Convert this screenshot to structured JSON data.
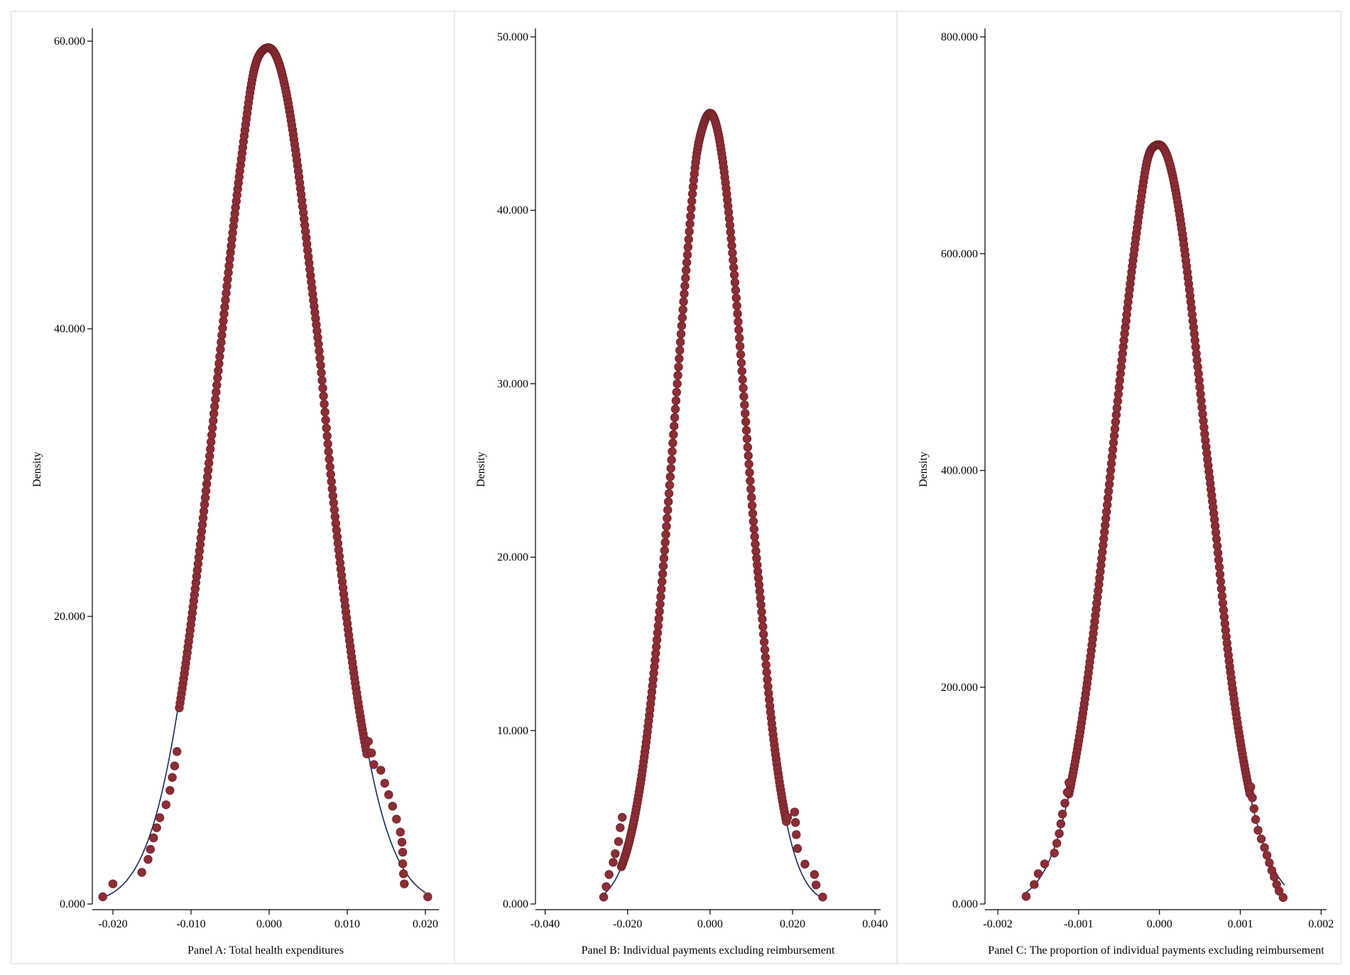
{
  "chart_data": [
    {
      "type": "scatter",
      "panel_id": "a",
      "xlabel": "Panel A: Total health expenditures",
      "ylabel": "Density",
      "xlim": [
        -0.022,
        0.021
      ],
      "ylim": [
        0,
        60
      ],
      "x_ticks": [
        -0.02,
        -0.01,
        0,
        0.01,
        0.02
      ],
      "x_tick_labels": [
        "-0.020",
        "-0.010",
        "0.000",
        "0.010",
        "0.020"
      ],
      "y_ticks": [
        0,
        20,
        40,
        60
      ],
      "y_tick_labels": [
        "0.000",
        "20.000",
        "40.000",
        "60.000"
      ],
      "kernel_density": {
        "peak": 59.5,
        "bandwidth": 0.0067,
        "x_range": [
          -0.0115,
          0.0125
        ],
        "bumps": [
          [
            -0.002,
            0.9,
            0.0008
          ],
          [
            0.0065,
            0.8,
            0.0007
          ]
        ]
      },
      "tail_points": [
        [
          -0.0213,
          0.5
        ],
        [
          -0.02,
          1.4
        ],
        [
          -0.0163,
          2.2
        ],
        [
          -0.0155,
          3.1
        ],
        [
          -0.0152,
          3.8
        ],
        [
          -0.0148,
          4.6
        ],
        [
          -0.0144,
          5.3
        ],
        [
          -0.014,
          6.0
        ],
        [
          -0.0132,
          6.9
        ],
        [
          -0.0127,
          7.9
        ],
        [
          -0.0124,
          8.8
        ],
        [
          -0.0121,
          9.6
        ],
        [
          -0.0118,
          10.6
        ],
        [
          0.0127,
          11.3
        ],
        [
          0.0131,
          10.5
        ],
        [
          0.0134,
          9.7
        ],
        [
          0.0143,
          9.3
        ],
        [
          0.0148,
          8.4
        ],
        [
          0.0153,
          7.6
        ],
        [
          0.0158,
          6.8
        ],
        [
          0.0163,
          5.9
        ],
        [
          0.0168,
          5.0
        ],
        [
          0.017,
          4.3
        ],
        [
          0.0171,
          3.6
        ],
        [
          0.0171,
          2.8
        ],
        [
          0.0172,
          2.1
        ],
        [
          0.0173,
          1.4
        ],
        [
          0.0203,
          0.5
        ]
      ],
      "normal_curve": {
        "mean": 0.0,
        "sd": 0.0068,
        "x_range": [
          -0.021,
          0.02
        ]
      }
    },
    {
      "type": "scatter",
      "panel_id": "b",
      "xlabel": "Panel B: Individual payments excluding reimbursement",
      "ylabel": "Density",
      "xlim": [
        -0.042,
        0.041
      ],
      "ylim": [
        0,
        50
      ],
      "x_ticks": [
        -0.04,
        -0.02,
        0,
        0.02,
        0.04
      ],
      "x_tick_labels": [
        "-0.040",
        "-0.020",
        "0.000",
        "0.020",
        "0.040"
      ],
      "y_ticks": [
        0,
        10,
        20,
        30,
        40,
        50
      ],
      "y_tick_labels": [
        "0.000",
        "10.000",
        "20.000",
        "30.000",
        "40.000",
        "50.000"
      ],
      "kernel_density": {
        "peak": 45.6,
        "bandwidth": 0.0087,
        "x_range": [
          -0.0215,
          0.0185
        ],
        "bumps": [
          [
            -0.0035,
            0.7,
            0.001
          ],
          [
            0.0125,
            0.6,
            0.0009
          ]
        ]
      },
      "tail_points": [
        [
          -0.0258,
          0.4
        ],
        [
          -0.0252,
          1.0
        ],
        [
          -0.0245,
          1.7
        ],
        [
          -0.0235,
          2.4
        ],
        [
          -0.023,
          2.9
        ],
        [
          -0.0222,
          3.6
        ],
        [
          -0.0218,
          4.4
        ],
        [
          -0.0213,
          5.0
        ],
        [
          0.0188,
          5.0
        ],
        [
          0.0205,
          5.3
        ],
        [
          0.0207,
          4.7
        ],
        [
          0.0209,
          4.0
        ],
        [
          0.0212,
          3.2
        ],
        [
          0.023,
          2.3
        ],
        [
          0.0253,
          1.7
        ],
        [
          0.0257,
          1.1
        ],
        [
          0.0273,
          0.4
        ]
      ],
      "normal_curve": {
        "mean": 0.0,
        "sd": 0.0087,
        "x_range": [
          -0.026,
          0.027
        ]
      }
    },
    {
      "type": "scatter",
      "panel_id": "c",
      "xlabel": "Panel C: The proportion of individual payments excluding reimbursement",
      "ylabel": "Density",
      "xlim": [
        -0.00215,
        0.00205
      ],
      "ylim": [
        0,
        800
      ],
      "x_ticks": [
        -0.002,
        -0.001,
        0,
        0.001,
        0.002
      ],
      "x_tick_labels": [
        "-0.002",
        "-0.001",
        "0.000",
        "0.001",
        "0.002"
      ],
      "y_ticks": [
        0,
        200,
        400,
        600,
        800
      ],
      "y_tick_labels": [
        "0.000",
        "200.000",
        "400.000",
        "600.000",
        "800.000"
      ],
      "kernel_density": {
        "peak": 700,
        "bandwidth": 0.00057,
        "x_range": [
          -0.00112,
          0.00112
        ],
        "bumps": [
          [
            -0.00015,
            10,
            6e-05
          ],
          [
            0.0007,
            12,
            7e-05
          ]
        ]
      },
      "tail_points": [
        [
          -0.00165,
          7
        ],
        [
          -0.00155,
          18
        ],
        [
          -0.0015,
          28
        ],
        [
          -0.00142,
          37
        ],
        [
          -0.0013,
          47
        ],
        [
          -0.00127,
          56
        ],
        [
          -0.00124,
          65
        ],
        [
          -0.00122,
          74
        ],
        [
          -0.0012,
          83
        ],
        [
          -0.00117,
          93
        ],
        [
          -0.00114,
          103
        ],
        [
          -0.00112,
          112
        ],
        [
          0.00113,
          108
        ],
        [
          0.00115,
          98
        ],
        [
          0.00117,
          88
        ],
        [
          0.00119,
          78
        ],
        [
          0.00122,
          68
        ],
        [
          0.00126,
          60
        ],
        [
          0.0013,
          52
        ],
        [
          0.00133,
          45
        ],
        [
          0.00136,
          38
        ],
        [
          0.00139,
          31
        ],
        [
          0.00142,
          25
        ],
        [
          0.00145,
          18
        ],
        [
          0.00148,
          12
        ],
        [
          0.00153,
          6
        ]
      ],
      "normal_curve": {
        "mean": 0.0,
        "sd": 0.00057,
        "x_range": [
          -0.0017,
          0.00155
        ]
      }
    }
  ]
}
